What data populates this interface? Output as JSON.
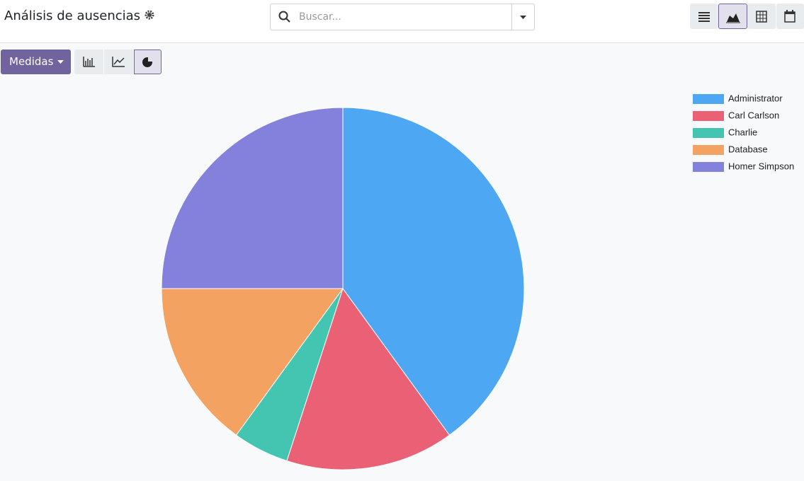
{
  "header": {
    "title": "Análisis de ausencias",
    "search_placeholder": "Buscar..."
  },
  "toolbar": {
    "measures_button": "Medidas"
  },
  "chart_data": {
    "type": "pie",
    "categories": [
      "Administrator",
      "Carl Carlson",
      "Charlie",
      "Database",
      "Homer Simpson"
    ],
    "values": [
      40,
      15,
      5,
      15,
      25
    ],
    "colors": [
      "#4ea7f2",
      "#ea6175",
      "#43c5b1",
      "#f4a261",
      "#8481dd"
    ],
    "legend": "top-right"
  }
}
